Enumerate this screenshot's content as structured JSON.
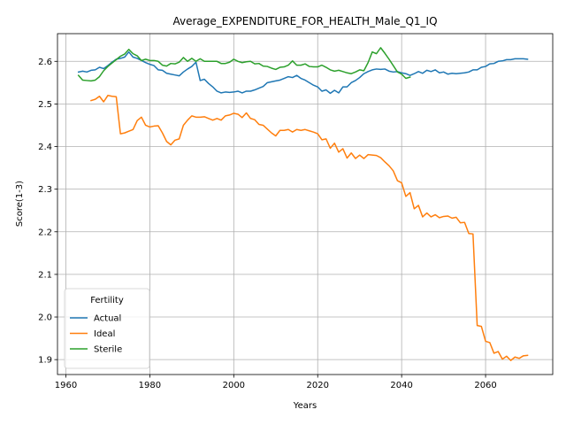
{
  "chart_data": {
    "type": "line",
    "title": "Average_EXPENDITURE_FOR_HEALTH_Male_Q1_IQ",
    "xlabel": "Years",
    "ylabel": "Score(1-3)",
    "xlim": [
      1958,
      2076
    ],
    "ylim": [
      1.865,
      2.665
    ],
    "xticks": [
      1960,
      1980,
      2000,
      2020,
      2040,
      2060
    ],
    "yticks": [
      1.9,
      2.0,
      2.1,
      2.2,
      2.3,
      2.4,
      2.5,
      2.6
    ],
    "grid": true,
    "legend": {
      "title": "Fertility",
      "placement": "lower-left"
    },
    "series": [
      {
        "name": "Actual",
        "color": "#1f77b4",
        "x": [
          1963,
          1964,
          1965,
          1966,
          1967,
          1968,
          1969,
          1970,
          1971,
          1972,
          1973,
          1974,
          1975,
          1976,
          1977,
          1978,
          1979,
          1980,
          1981,
          1982,
          1983,
          1984,
          1985,
          1986,
          1987,
          1988,
          1989,
          1990,
          1991,
          1992,
          1993,
          1994,
          1995,
          1996,
          1997,
          1998,
          1999,
          2000,
          2001,
          2002,
          2003,
          2004,
          2005,
          2006,
          2007,
          2008,
          2009,
          2010,
          2011,
          2012,
          2013,
          2014,
          2015,
          2016,
          2017,
          2018,
          2019,
          2020,
          2021,
          2022,
          2023,
          2024,
          2025,
          2026,
          2027,
          2028,
          2029,
          2030,
          2031,
          2032,
          2033,
          2034,
          2035,
          2036,
          2037,
          2038,
          2039,
          2040,
          2041,
          2042,
          2043,
          2044,
          2045,
          2046,
          2047,
          2048,
          2049,
          2050,
          2051,
          2052,
          2053,
          2054,
          2055,
          2056,
          2057,
          2058,
          2059,
          2060,
          2061,
          2062,
          2063,
          2064,
          2065,
          2066,
          2067,
          2068,
          2069,
          2070
        ],
        "y": [
          2.575,
          2.577,
          2.575,
          2.579,
          2.58,
          2.586,
          2.583,
          2.59,
          2.598,
          2.605,
          2.607,
          2.61,
          2.622,
          2.61,
          2.607,
          2.602,
          2.597,
          2.593,
          2.59,
          2.58,
          2.579,
          2.572,
          2.57,
          2.568,
          2.566,
          2.575,
          2.582,
          2.588,
          2.598,
          2.555,
          2.558,
          2.548,
          2.54,
          2.53,
          2.526,
          2.528,
          2.527,
          2.528,
          2.53,
          2.526,
          2.53,
          2.53,
          2.533,
          2.537,
          2.541,
          2.55,
          2.552,
          2.554,
          2.556,
          2.56,
          2.564,
          2.562,
          2.567,
          2.56,
          2.556,
          2.55,
          2.544,
          2.54,
          2.53,
          2.533,
          2.525,
          2.532,
          2.526,
          2.54,
          2.54,
          2.55,
          2.555,
          2.562,
          2.571,
          2.576,
          2.58,
          2.582,
          2.581,
          2.582,
          2.577,
          2.575,
          2.576,
          2.573,
          2.571,
          2.567,
          2.571,
          2.576,
          2.572,
          2.579,
          2.576,
          2.58,
          2.573,
          2.575,
          2.57,
          2.572,
          2.571,
          2.572,
          2.573,
          2.575,
          2.58,
          2.58,
          2.586,
          2.588,
          2.594,
          2.595,
          2.6,
          2.601,
          2.604,
          2.604,
          2.606,
          2.606,
          2.606,
          2.605
        ]
      },
      {
        "name": "Ideal",
        "color": "#ff7f0e",
        "x": [
          1966,
          1967,
          1968,
          1969,
          1970,
          1971,
          1972,
          1973,
          1974,
          1975,
          1976,
          1977,
          1978,
          1979,
          1980,
          1981,
          1982,
          1983,
          1984,
          1985,
          1986,
          1987,
          1988,
          1989,
          1990,
          1991,
          1992,
          1993,
          1994,
          1995,
          1996,
          1997,
          1998,
          1999,
          2000,
          2001,
          2002,
          2003,
          2004,
          2005,
          2006,
          2007,
          2008,
          2009,
          2010,
          2011,
          2012,
          2013,
          2014,
          2015,
          2016,
          2017,
          2018,
          2019,
          2020,
          2021,
          2022,
          2023,
          2024,
          2025,
          2026,
          2027,
          2028,
          2029,
          2030,
          2031,
          2032,
          2033,
          2034,
          2035,
          2036,
          2037,
          2038,
          2039,
          2040,
          2041,
          2042,
          2043,
          2044,
          2045,
          2046,
          2047,
          2048,
          2049,
          2050,
          2051,
          2052,
          2053,
          2054,
          2055,
          2056,
          2057,
          2058,
          2059,
          2060,
          2061,
          2062,
          2063,
          2064,
          2065,
          2066,
          2067,
          2068,
          2069,
          2070
        ],
        "y": [
          2.508,
          2.511,
          2.518,
          2.505,
          2.52,
          2.518,
          2.517,
          2.43,
          2.432,
          2.436,
          2.44,
          2.461,
          2.469,
          2.45,
          2.446,
          2.448,
          2.449,
          2.432,
          2.412,
          2.404,
          2.415,
          2.418,
          2.45,
          2.462,
          2.472,
          2.469,
          2.469,
          2.47,
          2.466,
          2.462,
          2.466,
          2.462,
          2.472,
          2.474,
          2.478,
          2.476,
          2.468,
          2.479,
          2.466,
          2.463,
          2.452,
          2.45,
          2.441,
          2.432,
          2.425,
          2.438,
          2.438,
          2.44,
          2.434,
          2.44,
          2.438,
          2.44,
          2.437,
          2.434,
          2.43,
          2.416,
          2.418,
          2.396,
          2.408,
          2.387,
          2.395,
          2.373,
          2.385,
          2.372,
          2.38,
          2.372,
          2.381,
          2.38,
          2.379,
          2.374,
          2.364,
          2.355,
          2.343,
          2.32,
          2.315,
          2.283,
          2.292,
          2.254,
          2.262,
          2.235,
          2.244,
          2.235,
          2.24,
          2.233,
          2.236,
          2.237,
          2.232,
          2.234,
          2.221,
          2.222,
          2.196,
          2.195,
          1.98,
          1.978,
          1.943,
          1.94,
          1.915,
          1.919,
          1.901,
          1.908,
          1.898,
          1.906,
          1.903,
          1.909,
          1.91
        ]
      },
      {
        "name": "Sterile",
        "color": "#2ca02c",
        "x": [
          1963,
          1964,
          1965,
          1966,
          1967,
          1968,
          1969,
          1970,
          1971,
          1972,
          1973,
          1974,
          1975,
          1976,
          1977,
          1978,
          1979,
          1980,
          1981,
          1982,
          1983,
          1984,
          1985,
          1986,
          1987,
          1988,
          1989,
          1990,
          1991,
          1992,
          1993,
          1994,
          1995,
          1996,
          1997,
          1998,
          1999,
          2000,
          2001,
          2002,
          2003,
          2004,
          2005,
          2006,
          2007,
          2008,
          2009,
          2010,
          2011,
          2012,
          2013,
          2014,
          2015,
          2016,
          2017,
          2018,
          2019,
          2020,
          2021,
          2022,
          2023,
          2024,
          2025,
          2026,
          2027,
          2028,
          2029,
          2030,
          2031,
          2032,
          2033,
          2034,
          2035,
          2036,
          2037,
          2038,
          2039,
          2040,
          2041,
          2042
        ],
        "y": [
          2.567,
          2.556,
          2.555,
          2.554,
          2.556,
          2.564,
          2.578,
          2.588,
          2.596,
          2.604,
          2.612,
          2.617,
          2.628,
          2.618,
          2.613,
          2.602,
          2.605,
          2.602,
          2.602,
          2.6,
          2.591,
          2.589,
          2.595,
          2.594,
          2.598,
          2.609,
          2.6,
          2.607,
          2.6,
          2.606,
          2.6,
          2.6,
          2.6,
          2.6,
          2.595,
          2.595,
          2.598,
          2.605,
          2.6,
          2.597,
          2.599,
          2.6,
          2.594,
          2.595,
          2.589,
          2.588,
          2.584,
          2.581,
          2.586,
          2.587,
          2.591,
          2.601,
          2.591,
          2.591,
          2.594,
          2.588,
          2.587,
          2.587,
          2.591,
          2.586,
          2.58,
          2.577,
          2.579,
          2.576,
          2.573,
          2.571,
          2.575,
          2.58,
          2.578,
          2.597,
          2.622,
          2.618,
          2.632,
          2.619,
          2.605,
          2.59,
          2.575,
          2.57,
          2.56,
          2.563
        ]
      }
    ]
  }
}
